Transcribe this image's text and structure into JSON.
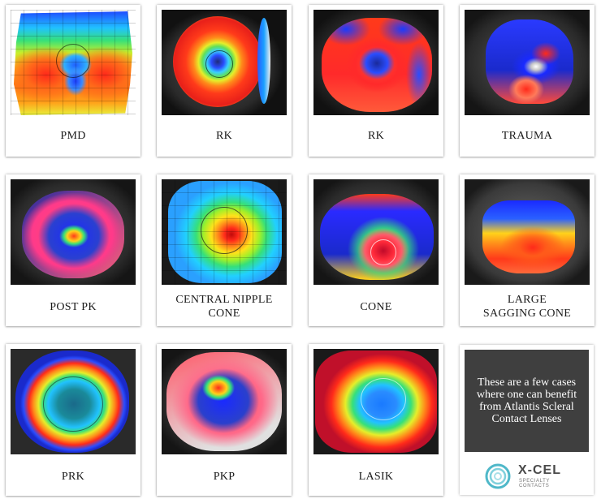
{
  "cases": [
    {
      "label": "PMD"
    },
    {
      "label": "RK"
    },
    {
      "label": "RK"
    },
    {
      "label": "TRAUMA"
    },
    {
      "label": "POST PK"
    },
    {
      "label": "CENTRAL NIPPLE CONE"
    },
    {
      "label": "CONE"
    },
    {
      "label": "LARGE SAGGING CONE"
    },
    {
      "label": "PRK"
    },
    {
      "label": "PKP"
    },
    {
      "label": "LASIK"
    }
  ],
  "info": {
    "text": "These are a few cases where one can benefit from Atlantis Scleral Contact Lenses",
    "logo_name": "X-CEL",
    "logo_sub": "SPECIALTY CONTACTS",
    "logo_color": "#4fb8c9"
  },
  "colors": {
    "card_bg": "#ffffff",
    "info_bg": "#3f3f3f"
  }
}
